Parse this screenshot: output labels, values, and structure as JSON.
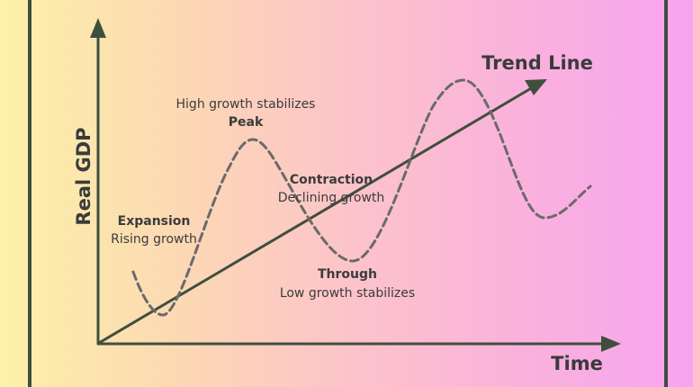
{
  "colors": {
    "axis": "#3f4f3e",
    "trend_line": "#3f4f3e",
    "cycle_curve": "#6a6a6a",
    "text": "#3b3b3b",
    "background_start": "#fdf2a8",
    "background_end": "#f7a4f0"
  },
  "axes": {
    "y_label": "Real GDP",
    "x_label": "Time"
  },
  "trend": {
    "label": "Trend Line"
  },
  "phases": {
    "expansion": {
      "title": "Expansion",
      "desc": "Rising growth"
    },
    "peak": {
      "title": "Peak",
      "desc": "High growth stabilizes"
    },
    "contraction": {
      "title": "Contraction",
      "desc": "Declining growth"
    },
    "trough": {
      "title": "Through",
      "desc": "Low growth stabilizes"
    }
  }
}
